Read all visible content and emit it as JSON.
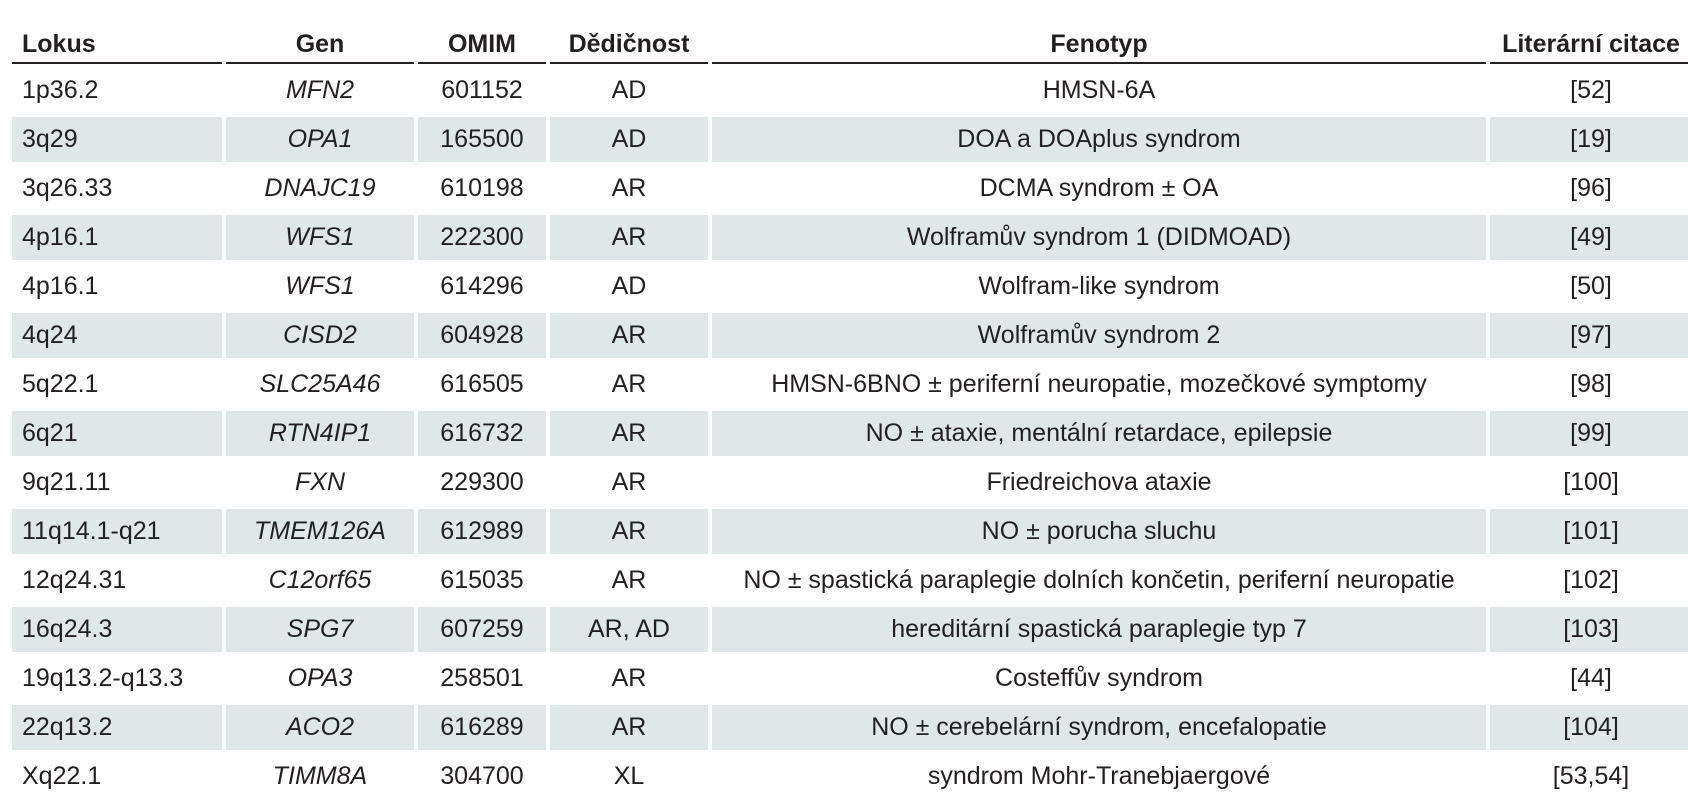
{
  "headers": {
    "locus": "Lokus",
    "gene": "Gen",
    "omim": "OMIM",
    "inheritance": "Dědičnost",
    "phenotype": "Fenotyp",
    "citation": "Literární citace"
  },
  "rows": [
    {
      "locus": "1p36.2",
      "gene": "MFN2",
      "omim": "601152",
      "inheritance": "AD",
      "phenotype": "HMSN-6A",
      "citation": "[52]"
    },
    {
      "locus": "3q29",
      "gene": "OPA1",
      "omim": "165500",
      "inheritance": "AD",
      "phenotype": "DOA a DOAplus syndrom",
      "citation": "[19]"
    },
    {
      "locus": "3q26.33",
      "gene": "DNAJC19",
      "omim": "610198",
      "inheritance": "AR",
      "phenotype": "DCMA syndrom ± OA",
      "citation": "[96]"
    },
    {
      "locus": "4p16.1",
      "gene": "WFS1",
      "omim": "222300",
      "inheritance": "AR",
      "phenotype": "Wolframův syndrom 1 (DIDMOAD)",
      "citation": "[49]"
    },
    {
      "locus": "4p16.1",
      "gene": "WFS1",
      "omim": "614296",
      "inheritance": "AD",
      "phenotype": "Wolfram-like syndrom",
      "citation": "[50]"
    },
    {
      "locus": "4q24",
      "gene": "CISD2",
      "omim": "604928",
      "inheritance": "AR",
      "phenotype": "Wolframův syndrom 2",
      "citation": "[97]"
    },
    {
      "locus": "5q22.1",
      "gene": "SLC25A46",
      "omim": "616505",
      "inheritance": "AR",
      "phenotype": "HMSN-6BNO ± periferní neuropatie, mozečkové symptomy",
      "citation": "[98]"
    },
    {
      "locus": "6q21",
      "gene": "RTN4IP1",
      "omim": "616732",
      "inheritance": "AR",
      "phenotype": "NO ± ataxie, mentální retardace, epilepsie",
      "citation": "[99]"
    },
    {
      "locus": "9q21.11",
      "gene": "FXN",
      "omim": "229300",
      "inheritance": "AR",
      "phenotype": "Friedreichova ataxie",
      "citation": "[100]"
    },
    {
      "locus": "11q14.1-q21",
      "gene": "TMEM126A",
      "omim": "612989",
      "inheritance": "AR",
      "phenotype": "NO ± porucha sluchu",
      "citation": "[101]"
    },
    {
      "locus": "12q24.31",
      "gene": "C12orf65",
      "omim": "615035",
      "inheritance": "AR",
      "phenotype": "NO ± spastická paraplegie dolních končetin, periferní neuropatie",
      "citation": "[102]"
    },
    {
      "locus": "16q24.3",
      "gene": "SPG7",
      "omim": "607259",
      "inheritance": "AR, AD",
      "phenotype": "hereditární spastická paraplegie typ 7",
      "citation": "[103]"
    },
    {
      "locus": "19q13.2-q13.3",
      "gene": "OPA3",
      "omim": "258501",
      "inheritance": "AR",
      "phenotype": "Costeffův syndrom",
      "citation": "[44]"
    },
    {
      "locus": "22q13.2",
      "gene": "ACO2",
      "omim": "616289",
      "inheritance": "AR",
      "phenotype": "NO ± cerebelární syndrom, encefalopatie",
      "citation": "[104]"
    },
    {
      "locus": "Xq22.1",
      "gene": "TIMM8A",
      "omim": "304700",
      "inheritance": "XL",
      "phenotype": "syndrom Mohr-Tranebjaergové",
      "citation": "[53,54]"
    }
  ],
  "colors": {
    "shaded_row": "#dfe7e8",
    "text": "#231f20"
  }
}
